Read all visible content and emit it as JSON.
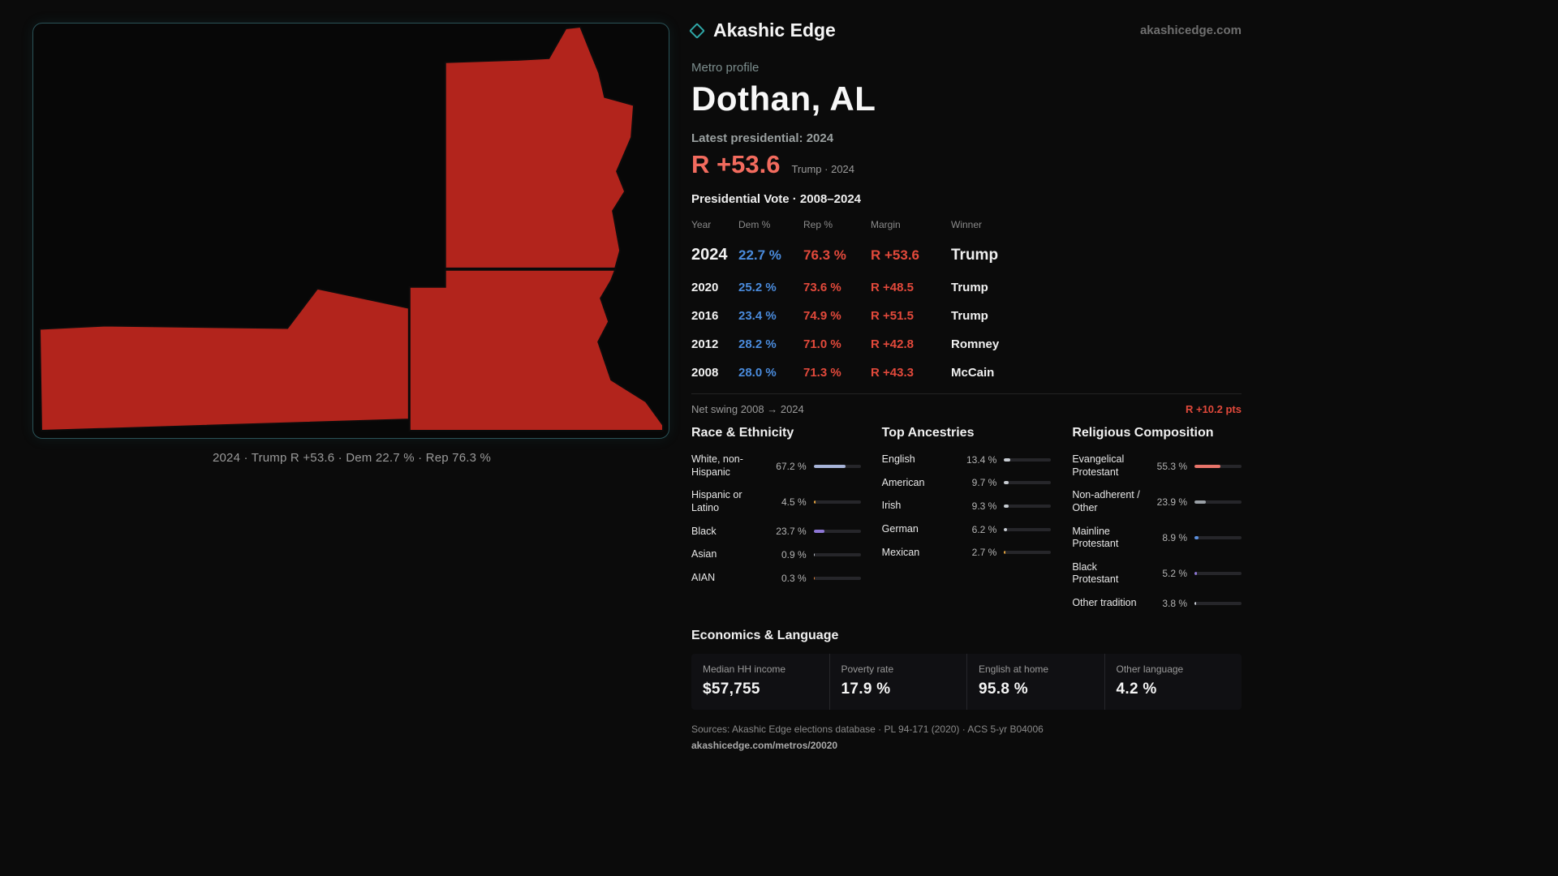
{
  "colors": {
    "dem_blue": "#4a8bdc",
    "rep_red": "#e2493b",
    "big_red": "#f26b5e",
    "map_red": "#b2241c",
    "accent_teal": "#2fa7a7"
  },
  "header": {
    "brand": "Akashic Edge",
    "site": "akashicedge.com"
  },
  "profile": {
    "kicker": "Metro profile",
    "title": "Dothan, AL",
    "latest_label": "Latest presidential: 2024",
    "latest_margin": "R +53.6",
    "latest_sub": "Trump · 2024"
  },
  "map": {
    "caption": "2024 · Trump R +53.6 · Dem 22.7 % · Rep 76.3 %"
  },
  "vote_table": {
    "title": "Presidential Vote · 2008–2024",
    "headers": [
      "Year",
      "Dem %",
      "Rep %",
      "Margin",
      "Winner"
    ],
    "rows": [
      {
        "year": "2024",
        "dem": "22.7 %",
        "rep": "76.3 %",
        "margin": "R +53.6",
        "winner": "Trump"
      },
      {
        "year": "2020",
        "dem": "25.2 %",
        "rep": "73.6 %",
        "margin": "R +48.5",
        "winner": "Trump"
      },
      {
        "year": "2016",
        "dem": "23.4 %",
        "rep": "74.9 %",
        "margin": "R +51.5",
        "winner": "Trump"
      },
      {
        "year": "2012",
        "dem": "28.2 %",
        "rep": "71.0 %",
        "margin": "R +42.8",
        "winner": "Romney"
      },
      {
        "year": "2008",
        "dem": "28.0 %",
        "rep": "71.3 %",
        "margin": "R +43.3",
        "winner": "McCain"
      }
    ]
  },
  "net_swing": {
    "label": "Net swing 2008 → 2024",
    "value": "R +10.2 pts"
  },
  "race": {
    "title": "Race & Ethnicity",
    "items": [
      {
        "label": "White, non-Hispanic",
        "value": "67.2 %",
        "pct": 67.2,
        "color": "#a7b4d8"
      },
      {
        "label": "Hispanic or Latino",
        "value": "4.5 %",
        "pct": 4.5,
        "color": "#e2a23c"
      },
      {
        "label": "Black",
        "value": "23.7 %",
        "pct": 23.7,
        "color": "#8d76d5"
      },
      {
        "label": "Asian",
        "value": "0.9 %",
        "pct": 0.9,
        "color": "#b9bec4"
      },
      {
        "label": "AIAN",
        "value": "0.3 %",
        "pct": 0.3,
        "color": "#df7f38"
      }
    ]
  },
  "ancestries": {
    "title": "Top Ancestries",
    "items": [
      {
        "label": "English",
        "value": "13.4 %",
        "pct": 13.4,
        "color": "#c7ccd2"
      },
      {
        "label": "American",
        "value": "9.7 %",
        "pct": 9.7,
        "color": "#c7ccd2"
      },
      {
        "label": "Irish",
        "value": "9.3 %",
        "pct": 9.3,
        "color": "#c7ccd2"
      },
      {
        "label": "German",
        "value": "6.2 %",
        "pct": 6.2,
        "color": "#c7ccd2"
      },
      {
        "label": "Mexican",
        "value": "2.7 %",
        "pct": 2.7,
        "color": "#e2a23c"
      }
    ]
  },
  "religion": {
    "title": "Religious Composition",
    "items": [
      {
        "label": "Evangelical Protestant",
        "value": "55.3 %",
        "pct": 55.3,
        "color": "#e8746a"
      },
      {
        "label": "Non-adherent / Other",
        "value": "23.9 %",
        "pct": 23.9,
        "color": "#9aa0a6"
      },
      {
        "label": "Mainline Protestant",
        "value": "8.9 %",
        "pct": 8.9,
        "color": "#5b8fdf"
      },
      {
        "label": "Black Protestant",
        "value": "5.2 %",
        "pct": 5.2,
        "color": "#8d76d5"
      },
      {
        "label": "Other tradition",
        "value": "3.8 %",
        "pct": 3.8,
        "color": "#c7ccd2"
      }
    ]
  },
  "economics": {
    "title": "Economics & Language",
    "stats": [
      {
        "label": "Median HH income",
        "value": "$57,755"
      },
      {
        "label": "Poverty rate",
        "value": "17.9 %"
      },
      {
        "label": "English at home",
        "value": "95.8 %"
      },
      {
        "label": "Other language",
        "value": "4.2 %"
      }
    ]
  },
  "footer": {
    "sources": "Sources: Akashic Edge elections database · PL 94-171 (2020) · ACS 5-yr B04006",
    "link": "akashicedge.com/metros/20020"
  }
}
